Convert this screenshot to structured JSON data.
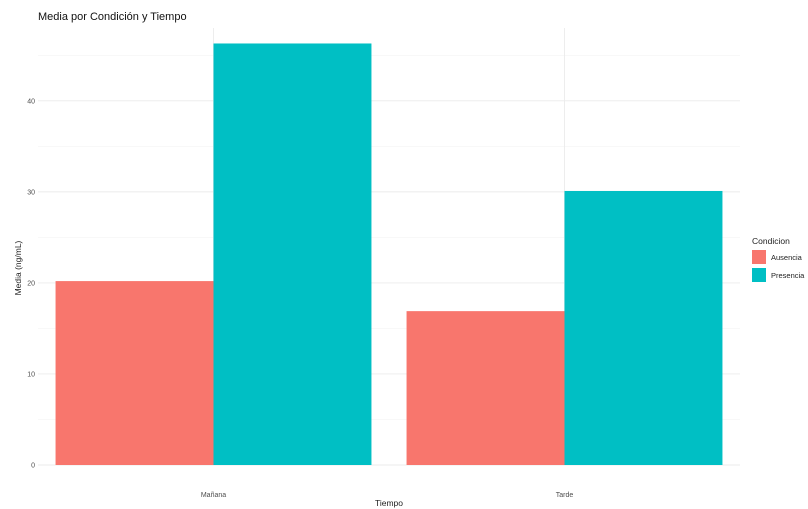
{
  "chart_data": {
    "type": "bar",
    "title": "Media por Condición y Tiempo",
    "xlabel": "Tiempo",
    "ylabel": "Media (ng/mL)",
    "categories": [
      "Mañana",
      "Tarde"
    ],
    "series": [
      {
        "name": "Ausencia",
        "values": [
          20.2,
          16.9
        ],
        "color": "#f8766d"
      },
      {
        "name": "Presencia",
        "values": [
          46.3,
          30.1
        ],
        "color": "#00bfc4"
      }
    ],
    "ylim": [
      0,
      48
    ],
    "yticks": [
      0,
      10,
      20,
      30,
      40
    ],
    "grid": true,
    "legend": {
      "title": "Condicion",
      "position": "right",
      "labels": [
        "Ausencia",
        "Presencia"
      ]
    }
  }
}
